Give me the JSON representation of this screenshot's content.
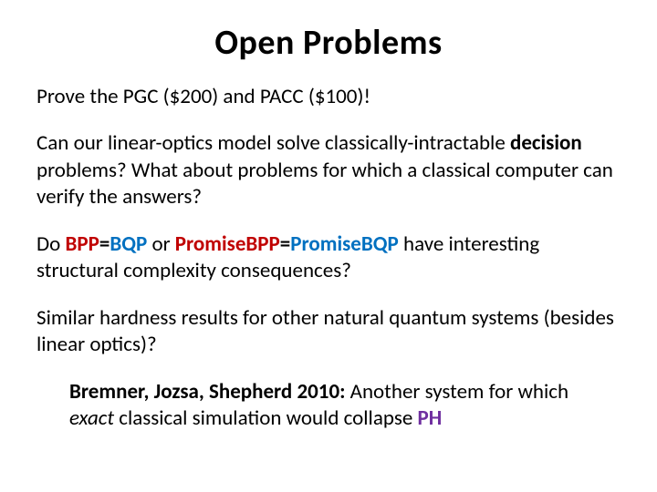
{
  "colors": {
    "text": "#000000",
    "red": "#c00000",
    "blue": "#0070c0",
    "purple": "#7030a0",
    "background": "#ffffff"
  },
  "typography": {
    "family": "Calibri",
    "title_size_pt": 38,
    "body_size_pt": 23,
    "title_weight": 700,
    "body_weight": 400
  },
  "title": "Open Problems",
  "p1_1": "Prove the PGC ($200) and PACC ($100)!",
  "p2_1": "Can our linear-optics model solve classically-intractable ",
  "p2_2": "decision",
  "p2_3": " problems?  What about problems for which a classical computer can verify the answers?",
  "p3_1": "Do ",
  "p3_2": "BPP",
  "p3_3": "=",
  "p3_4": "BQP",
  "p3_5": " or ",
  "p3_6": "PromiseBPP",
  "p3_7": "=",
  "p3_8": "PromiseBQP",
  "p3_9": " have interesting structural complexity consequences?",
  "p4_1": "Similar hardness results for other natural quantum systems (besides linear optics)?",
  "p5_1": "Bremner, Jozsa, Shepherd 2010:",
  "p5_2": " Another system for which ",
  "p5_3": "exact",
  "p5_4": " classical simulation would collapse ",
  "p5_5": "PH"
}
